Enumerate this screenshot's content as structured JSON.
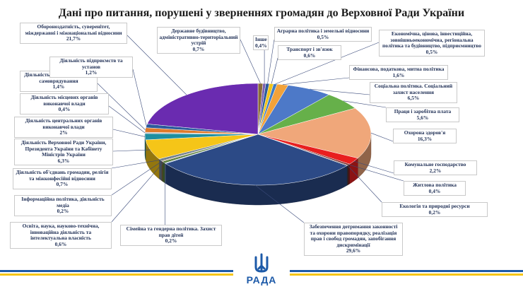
{
  "chart_data": {
    "type": "pie",
    "title": "Дані про питання, порушені у зверненнях громадян до Верховної Ради України",
    "slices": [
      {
        "label": "Державне будівництво, адміністративно-територіальний устрій",
        "value": 0.7,
        "pct": "0,7%",
        "color": "#8a6b3a"
      },
      {
        "label": "Інше",
        "value": 0.4,
        "pct": "0,4%",
        "color": "#7b5fb0"
      },
      {
        "label": "Аграрна політика і земельні відносини",
        "value": 0.5,
        "pct": "0,5%",
        "color": "#2c5b9c"
      },
      {
        "label": "Транспорт і зв'язок",
        "value": 0.6,
        "pct": "0,6%",
        "color": "#f0c419"
      },
      {
        "label": "Економічна, цінова, інвестиційна, зовнішньоекономічна, регіональна політика та будівництво, підприємництво",
        "value": 0.5,
        "pct": "0,5%",
        "color": "#3f7bc4"
      },
      {
        "label": "Фінансова, податкова, митна політика",
        "value": 1.6,
        "pct": "1,6%",
        "color": "#f2a23a"
      },
      {
        "label": "Соціальна політика. Соціальний захист населення",
        "value": 6.5,
        "pct": "6,5%",
        "color": "#4d79c8"
      },
      {
        "label": "Праця і заробітна плата",
        "value": 5.6,
        "pct": "5,6%",
        "color": "#66b04a"
      },
      {
        "label": "Охорона здоров'я",
        "value": 16.3,
        "pct": "16,3%",
        "color": "#f0a77a"
      },
      {
        "label": "Комунальне господарство",
        "value": 2.2,
        "pct": "2,2%",
        "color": "#e81f1f"
      },
      {
        "label": "Житлова політика",
        "value": 0.4,
        "pct": "0,4%",
        "color": "#7a1f1f"
      },
      {
        "label": "Екологія та природні ресурси",
        "value": 0.2,
        "pct": "0,2%",
        "color": "#444444"
      },
      {
        "label": "Забезпечення дотримання законності та охорони правопорядку, реалізація прав і свобод громадян, запобігання дискримінації",
        "value": 29.6,
        "pct": "29,6%",
        "color": "#2c4a86"
      },
      {
        "label": "Сімейна та гендерна політика. Захист прав дітей",
        "value": 0.2,
        "pct": "0,2%",
        "color": "#8fb0d6"
      },
      {
        "label": "Освіта, наука, науково-технічна, інноваційна діяльність та інтелектуальна власність",
        "value": 0.6,
        "pct": "0,6%",
        "color": "#5a7f3a"
      },
      {
        "label": "Інформаційна політика, діяльність медіа",
        "value": 0.2,
        "pct": "0,2%",
        "color": "#9c6a3d"
      },
      {
        "label": "Діяльність об'єднань громадян, релігія та міжконфесійні відносини",
        "value": 0.7,
        "pct": "0,7%",
        "color": "#6f7f8f"
      },
      {
        "label": "Діяльність Верховної Ради України, Президента України та Кабінету Міністрів України",
        "value": 6.3,
        "pct": "6,3%",
        "color": "#f5c518"
      },
      {
        "label": "Діяльність центральних органів виконавчої влади",
        "value": 2,
        "pct": "2%",
        "color": "#1e8fa0"
      },
      {
        "label": "Діяльність місцевих органів виконавчої влади",
        "value": 0.4,
        "pct": "0,4%",
        "color": "#b8b8b8"
      },
      {
        "label": "Діяльність органів місцевого самоврядування",
        "value": 1.4,
        "pct": "1,4%",
        "color": "#e07a2a"
      },
      {
        "label": "Діяльність підприємств та установ",
        "value": 1.2,
        "pct": "1,2%",
        "color": "#2c5b9c"
      },
      {
        "label": "Обороноздатність, суверенітет, міждержавні і міжнаціональні відносини",
        "value": 21.7,
        "pct": "21,7%",
        "color": "#6a2bb0"
      }
    ]
  },
  "branding": {
    "logo_text": "РАДА",
    "colors": {
      "blue": "#1d5aa8",
      "yellow": "#f5c518"
    }
  }
}
